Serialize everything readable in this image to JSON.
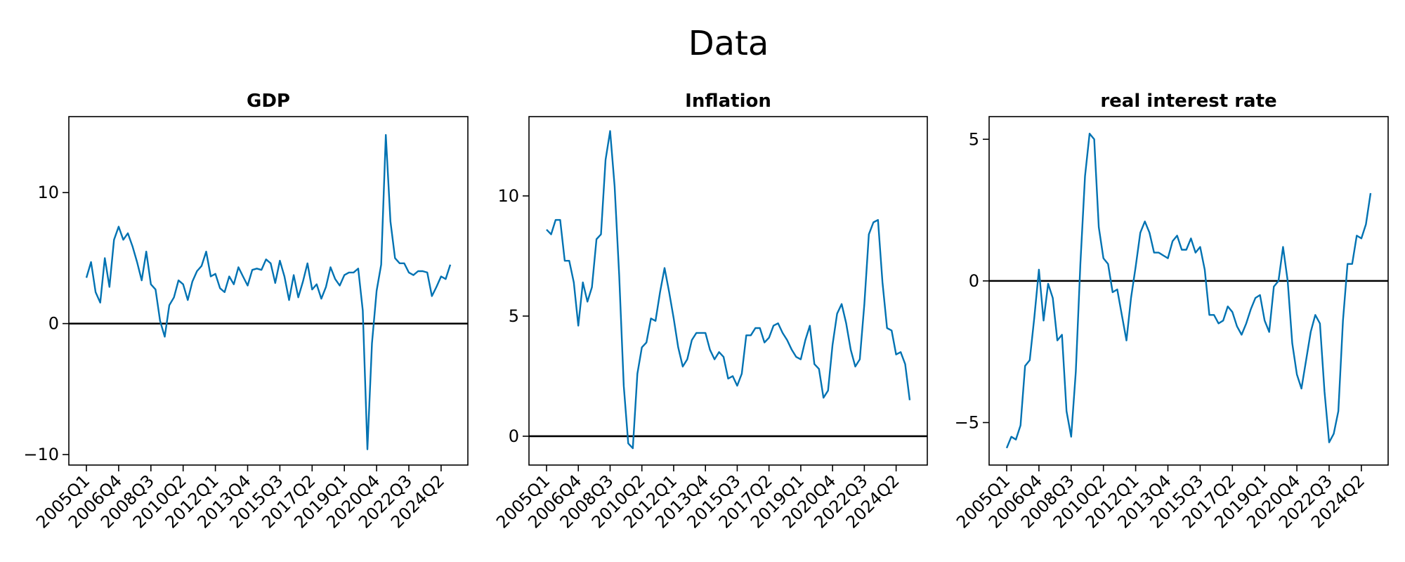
{
  "title": "Data",
  "chart_data": [
    {
      "type": "line",
      "title": "GDP",
      "xlabel": "",
      "ylabel": "",
      "x_tick_labels": [
        "2005Q1",
        "2006Q4",
        "2008Q3",
        "2010Q2",
        "2012Q1",
        "2013Q4",
        "2015Q3",
        "2017Q2",
        "2019Q1",
        "2020Q4",
        "2022Q3",
        "2024Q2"
      ],
      "y_ticks": [
        -10,
        0,
        10
      ],
      "ylim": [
        -10.8,
        15.8
      ],
      "hline": 0,
      "line_color": "#0072B2",
      "series": [
        {
          "values": [
            3.5,
            4.7,
            2.4,
            1.6,
            5.0,
            2.8,
            6.4,
            7.4,
            6.4,
            6.9,
            5.9,
            4.7,
            3.3,
            5.5,
            3.0,
            2.6,
            0.2,
            -1.0,
            1.4,
            2.0,
            3.3,
            3.0,
            1.8,
            3.2,
            4.0,
            4.4,
            5.5,
            3.6,
            3.8,
            2.7,
            2.4,
            3.6,
            3.0,
            4.3,
            3.6,
            2.9,
            4.1,
            4.2,
            4.1,
            4.9,
            4.6,
            3.1,
            4.8,
            3.6,
            1.8,
            3.7,
            2.0,
            3.2,
            4.6,
            2.6,
            3.0,
            1.9,
            2.8,
            4.3,
            3.4,
            2.9,
            3.7,
            3.9,
            3.9,
            4.2,
            1.0,
            -9.6,
            -1.5,
            2.5,
            4.5,
            14.4,
            7.8,
            5.0,
            4.6,
            4.6,
            3.9,
            3.7,
            4.0,
            4.0,
            3.9,
            2.1,
            2.8,
            3.6,
            3.4,
            4.5
          ]
        }
      ]
    },
    {
      "type": "line",
      "title": "Inflation",
      "xlabel": "",
      "ylabel": "",
      "x_tick_labels": [
        "2005Q1",
        "2006Q4",
        "2008Q3",
        "2010Q2",
        "2012Q1",
        "2013Q4",
        "2015Q3",
        "2017Q2",
        "2019Q1",
        "2020Q4",
        "2022Q3",
        "2024Q2"
      ],
      "y_ticks": [
        0,
        5,
        10
      ],
      "ylim": [
        -1.2,
        13.3
      ],
      "hline": 0,
      "line_color": "#0072B2",
      "series": [
        {
          "values": [
            8.6,
            8.4,
            9.0,
            9.0,
            7.3,
            7.3,
            6.4,
            4.6,
            6.4,
            5.6,
            6.2,
            8.2,
            8.4,
            11.5,
            12.7,
            10.4,
            6.7,
            2.1,
            -0.3,
            -0.5,
            2.6,
            3.7,
            3.9,
            4.9,
            4.8,
            6.0,
            7.0,
            6.0,
            4.9,
            3.7,
            2.9,
            3.2,
            4.0,
            4.3,
            4.3,
            4.3,
            3.6,
            3.2,
            3.5,
            3.3,
            2.4,
            2.5,
            2.1,
            2.6,
            4.2,
            4.2,
            4.5,
            4.5,
            3.9,
            4.1,
            4.6,
            4.7,
            4.3,
            4.0,
            3.6,
            3.3,
            3.2,
            4.0,
            4.6,
            3.0,
            2.8,
            1.6,
            1.9,
            3.8,
            5.1,
            5.5,
            4.7,
            3.6,
            2.9,
            3.2,
            5.5,
            8.4,
            8.9,
            9.0,
            6.4,
            4.5,
            4.4,
            3.4,
            3.5,
            3.0,
            1.5
          ]
        }
      ]
    },
    {
      "type": "line",
      "title": "real interest rate",
      "xlabel": "",
      "ylabel": "",
      "x_tick_labels": [
        "2005Q1",
        "2006Q4",
        "2008Q3",
        "2010Q2",
        "2012Q1",
        "2013Q4",
        "2015Q3",
        "2017Q2",
        "2019Q1",
        "2020Q4",
        "2022Q3",
        "2024Q2"
      ],
      "y_ticks": [
        -5,
        0,
        5
      ],
      "ylim": [
        -6.5,
        5.8
      ],
      "hline": 0,
      "line_color": "#0072B2",
      "series": [
        {
          "values": [
            -5.9,
            -5.5,
            -5.6,
            -5.1,
            -3.0,
            -2.8,
            -1.3,
            0.4,
            -1.4,
            -0.1,
            -0.6,
            -2.1,
            -1.9,
            -4.6,
            -5.5,
            -3.2,
            0.6,
            3.7,
            5.2,
            5.0,
            1.9,
            0.8,
            0.6,
            -0.4,
            -0.3,
            -1.2,
            -2.1,
            -0.6,
            0.5,
            1.7,
            2.1,
            1.7,
            1.0,
            1.0,
            0.9,
            0.8,
            1.4,
            1.6,
            1.1,
            1.1,
            1.5,
            1.0,
            1.2,
            0.4,
            -1.2,
            -1.2,
            -1.5,
            -1.4,
            -0.9,
            -1.1,
            -1.6,
            -1.9,
            -1.5,
            -1.0,
            -0.6,
            -0.5,
            -1.4,
            -1.8,
            -0.2,
            0.0,
            1.2,
            0.0,
            -2.2,
            -3.3,
            -3.8,
            -2.8,
            -1.8,
            -1.2,
            -1.5,
            -3.9,
            -5.7,
            -5.4,
            -4.6,
            -1.4,
            0.6,
            0.6,
            1.6,
            1.5,
            2.0,
            3.1
          ]
        }
      ]
    }
  ]
}
